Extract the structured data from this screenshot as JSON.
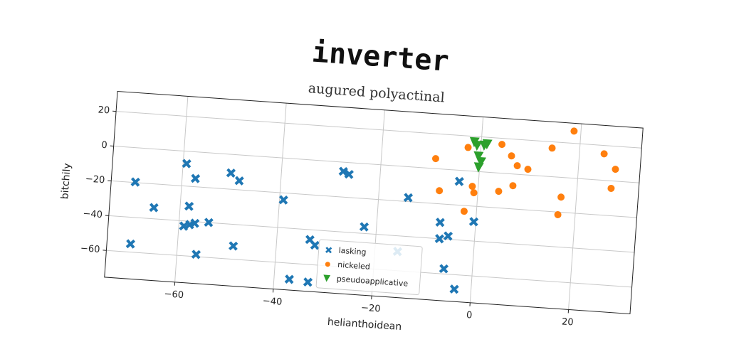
{
  "chart_data": {
    "type": "scatter",
    "title": "inverter",
    "subtitle": "augured polyactinal",
    "x_label": "helianthoidean",
    "y_label": "bitchily",
    "xlim": [
      -74.3,
      32.5
    ],
    "ylim": [
      -75.4,
      31.5
    ],
    "xticks": [
      {
        "value": -60,
        "label": "−60"
      },
      {
        "value": -40,
        "label": "−40"
      },
      {
        "value": -20,
        "label": "−20"
      },
      0,
      20
    ],
    "yticks": [
      {
        "value": -60,
        "label": "−60"
      },
      {
        "value": -40,
        "label": "−40"
      },
      {
        "value": -20,
        "label": "−20"
      },
      0,
      20
    ],
    "grid": true,
    "legend": "lower center",
    "series": [
      {
        "name": "lasking",
        "color": "#1f77b4",
        "marker": "x",
        "x": [
          -69.5,
          -69.4,
          -65.3,
          -59.3,
          -57.3,
          -58.2,
          -59,
          -57.8,
          -56.8,
          -54,
          -56.1,
          -50.2,
          -48.4,
          -48.7,
          -39.2,
          -36.9,
          -33.1,
          -33.3,
          -32.2,
          -27.5,
          -26.3,
          -22.5,
          -15.4,
          -14,
          -7.2,
          -7.1,
          -5.4,
          -5.8,
          -3.4,
          -3.9,
          -0.4
        ],
        "y": [
          -55.3,
          -19.7,
          -33.6,
          -7.1,
          -15.3,
          -31.4,
          -43,
          -41.9,
          -40.9,
          -39.9,
          -58.7,
          -10.7,
          -14.8,
          -52.4,
          -24,
          -69.2,
          -70.1,
          -45.7,
          -48.7,
          -5.3,
          -6.7,
          -36.2,
          -49,
          -17.7,
          -30.6,
          -40,
          -38.1,
          -57,
          -68.3,
          -6.4,
          -28.9
        ]
      },
      {
        "name": "nickeled",
        "color": "#ff7f0e",
        "marker": "o",
        "x": [
          -9,
          -7.8,
          -2.5,
          -2.6,
          -1.2,
          -0.8,
          4.2,
          4.2,
          6.3,
          7.6,
          7,
          9.8,
          14.4,
          16.9,
          16.5,
          18.6,
          25,
          26.9,
          27.5
        ],
        "y": [
          5.7,
          -12.5,
          -23.3,
          13.4,
          -8.7,
          -12.3,
          -10.5,
          16.5,
          10.3,
          4.9,
          -6.7,
          3.3,
          16.4,
          -11.3,
          -21.5,
          27,
          15.2,
          -4.3,
          6.8
        ]
      },
      {
        "name": "pseudoapplicative",
        "color": "#2ca02c",
        "marker": "v",
        "x": [
          -0.8,
          0.65,
          -0.4,
          0.2,
          -1.4,
          1.2,
          -0.2
        ],
        "y": [
          14.7,
          15,
          8.6,
          5.5,
          16.6,
          15.9,
          2.3
        ]
      }
    ]
  }
}
